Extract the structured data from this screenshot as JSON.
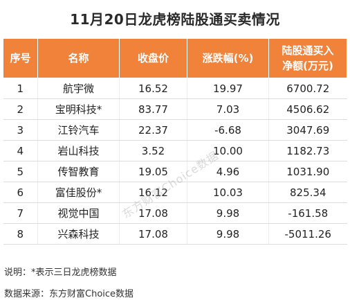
{
  "title": "11月20日龙虎榜陆股通买卖情况",
  "table": {
    "headers": {
      "idx": "序号",
      "name": "名称",
      "close": "收盘价",
      "chg": "涨跌幅(%)",
      "net_line1": "陆股通买入",
      "net_line2": "净额(万元)"
    },
    "rows": [
      {
        "idx": "1",
        "name": "航宇微",
        "close": "16.52",
        "chg": "19.97",
        "net": "6700.72"
      },
      {
        "idx": "2",
        "name": "宝明科技*",
        "close": "83.77",
        "chg": "7.03",
        "net": "4506.62"
      },
      {
        "idx": "3",
        "name": "江铃汽车",
        "close": "22.37",
        "chg": "-6.68",
        "net": "3047.69"
      },
      {
        "idx": "4",
        "name": "岩山科技",
        "close": "3.52",
        "chg": "10.00",
        "net": "1182.73"
      },
      {
        "idx": "5",
        "name": "传智教育",
        "close": "19.05",
        "chg": "4.96",
        "net": "1031.90"
      },
      {
        "idx": "6",
        "name": "富佳股份*",
        "close": "16.12",
        "chg": "10.03",
        "net": "825.34"
      },
      {
        "idx": "7",
        "name": "视觉中国",
        "close": "17.08",
        "chg": "9.98",
        "net": "-161.58"
      },
      {
        "idx": "8",
        "name": "兴森科技",
        "close": "17.08",
        "chg": "9.98",
        "net": "-5011.26"
      }
    ]
  },
  "watermark": "东方财富Choice数据",
  "notes": {
    "explanation": "说明：*表示三日龙虎榜数据",
    "source": "数据来源：东方财富Choice数据"
  }
}
